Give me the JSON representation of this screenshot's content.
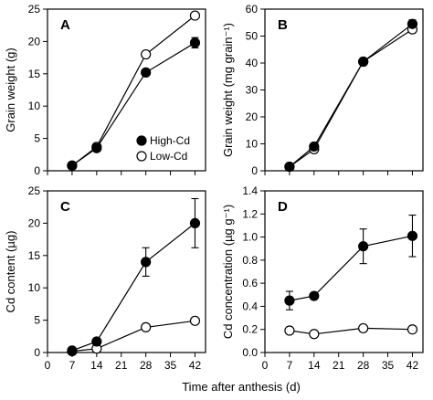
{
  "xlabel": "Time after anthesis (d)",
  "chart_data": [
    {
      "id": "A",
      "type": "line",
      "letter": "A",
      "ylabel": "Grain weight (g)",
      "xlim": [
        0,
        45
      ],
      "xticks": [
        0,
        7,
        14,
        21,
        28,
        35,
        42
      ],
      "show_xticklabels": false,
      "ylim": [
        0,
        25
      ],
      "yticks": [
        0,
        5,
        10,
        15,
        20,
        25
      ],
      "legend": {
        "placement": "bottom-right",
        "entries": [
          "High-Cd",
          "Low-Cd"
        ]
      },
      "series": [
        {
          "name": "High-Cd",
          "marker": "filled",
          "x": [
            7,
            14,
            28,
            42
          ],
          "y": [
            0.8,
            3.5,
            15.2,
            19.8
          ],
          "err": [
            0,
            0,
            0,
            0.8
          ]
        },
        {
          "name": "Low-Cd",
          "marker": "open",
          "x": [
            7,
            14,
            28,
            42
          ],
          "y": [
            0.8,
            3.7,
            18.0,
            24.0
          ],
          "err": [
            0,
            0,
            0,
            0
          ]
        }
      ]
    },
    {
      "id": "B",
      "type": "line",
      "letter": "B",
      "ylabel": "Grain weight (mg grain⁻¹)",
      "xlim": [
        0,
        45
      ],
      "xticks": [
        0,
        7,
        14,
        21,
        28,
        35,
        42
      ],
      "show_xticklabels": false,
      "ylim": [
        0,
        60
      ],
      "yticks": [
        0,
        10,
        20,
        30,
        40,
        50,
        60
      ],
      "series": [
        {
          "name": "High-Cd",
          "marker": "filled",
          "x": [
            7,
            14,
            28,
            42
          ],
          "y": [
            1.5,
            9.0,
            40.5,
            54.5
          ],
          "err": [
            0,
            0,
            1.2,
            1.5
          ]
        },
        {
          "name": "Low-Cd",
          "marker": "open",
          "x": [
            7,
            14,
            28,
            42
          ],
          "y": [
            1.5,
            8.0,
            40.5,
            52.5
          ],
          "err": [
            0,
            0,
            1.0,
            1.2
          ]
        }
      ]
    },
    {
      "id": "C",
      "type": "line",
      "letter": "C",
      "ylabel": "Cd content (µg)",
      "xlim": [
        0,
        45
      ],
      "xticks": [
        0,
        7,
        14,
        21,
        28,
        35,
        42
      ],
      "show_xticklabels": true,
      "ylim": [
        0,
        25
      ],
      "yticks": [
        0,
        5,
        10,
        15,
        20,
        25
      ],
      "series": [
        {
          "name": "High-Cd",
          "marker": "filled",
          "x": [
            7,
            14,
            28,
            42
          ],
          "y": [
            0.3,
            1.7,
            14.0,
            20.0
          ],
          "err": [
            0,
            0,
            2.2,
            3.8
          ]
        },
        {
          "name": "Low-Cd",
          "marker": "open",
          "x": [
            7,
            14,
            28,
            42
          ],
          "y": [
            0.2,
            0.6,
            3.9,
            4.9
          ],
          "err": [
            0,
            0,
            0,
            0
          ]
        }
      ]
    },
    {
      "id": "D",
      "type": "line",
      "letter": "D",
      "ylabel": "Cd concentration (µg g⁻¹)",
      "xlim": [
        0,
        45
      ],
      "xticks": [
        0,
        7,
        14,
        21,
        28,
        35,
        42
      ],
      "show_xticklabels": true,
      "ylim": [
        0,
        1.4
      ],
      "yticks": [
        0,
        0.2,
        0.4,
        0.6,
        0.8,
        1.0,
        1.2,
        1.4
      ],
      "ytick_decimals": 1,
      "series": [
        {
          "name": "High-Cd",
          "marker": "filled",
          "x": [
            7,
            14,
            28,
            42
          ],
          "y": [
            0.45,
            0.49,
            0.92,
            1.01
          ],
          "err": [
            0.08,
            0,
            0.15,
            0.18
          ]
        },
        {
          "name": "Low-Cd",
          "marker": "open",
          "x": [
            7,
            14,
            28,
            42
          ],
          "y": [
            0.19,
            0.16,
            0.21,
            0.2
          ],
          "err": [
            0,
            0,
            0,
            0
          ]
        }
      ]
    }
  ]
}
